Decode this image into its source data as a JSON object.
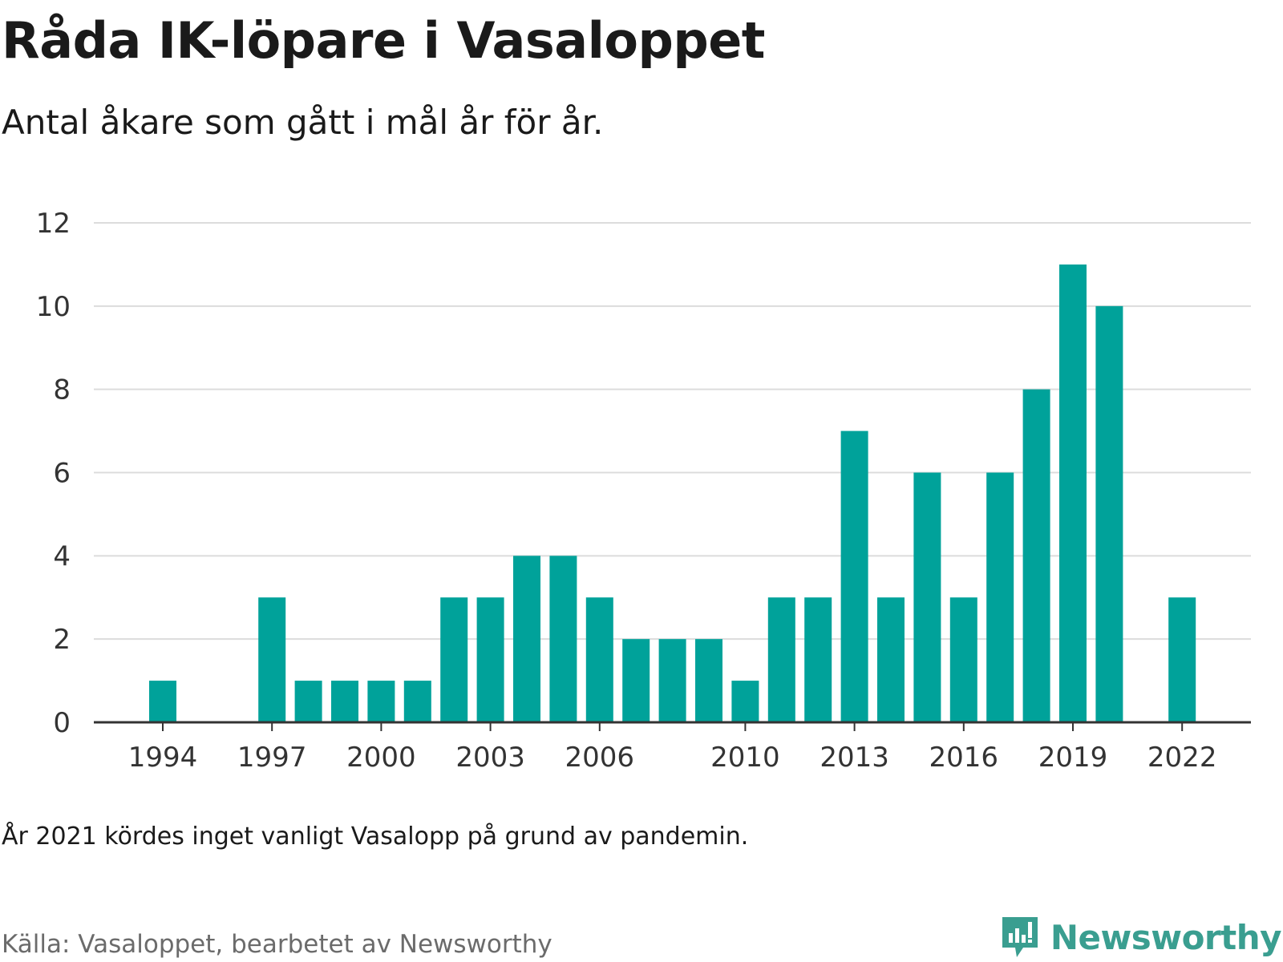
{
  "header": {
    "title": "Råda IK-löpare i Vasaloppet",
    "subtitle": "Antal åkare som gått i mål år för år."
  },
  "footer": {
    "note": "År 2021 kördes inget vanligt Vasalopp på grund av pandemin.",
    "source": "Källa: Vasaloppet, bearbetet av Newsworthy",
    "brand": "Newsworthy"
  },
  "colors": {
    "bar": "#00a29a",
    "grid": "#dcdcdc",
    "axis": "#333333",
    "brand": "#3a9e90"
  },
  "chart_data": {
    "type": "bar",
    "title": "Råda IK-löpare i Vasaloppet",
    "subtitle": "Antal åkare som gått i mål år för år.",
    "xlabel": "",
    "ylabel": "",
    "categories": [
      1994,
      1995,
      1996,
      1997,
      1998,
      1999,
      2000,
      2001,
      2002,
      2003,
      2004,
      2005,
      2006,
      2007,
      2008,
      2009,
      2010,
      2011,
      2012,
      2013,
      2014,
      2015,
      2016,
      2017,
      2018,
      2019,
      2020,
      2021,
      2022
    ],
    "values": [
      1,
      0,
      0,
      3,
      1,
      1,
      1,
      1,
      3,
      3,
      4,
      4,
      3,
      2,
      2,
      2,
      1,
      3,
      3,
      7,
      3,
      6,
      3,
      6,
      8,
      11,
      10,
      0,
      3
    ],
    "x_ticks": [
      1994,
      1997,
      2000,
      2003,
      2006,
      2010,
      2013,
      2016,
      2019,
      2022
    ],
    "y_ticks": [
      0,
      2,
      4,
      6,
      8,
      10,
      12
    ],
    "ylim": [
      0,
      12
    ],
    "grid": true,
    "legend": "none"
  }
}
